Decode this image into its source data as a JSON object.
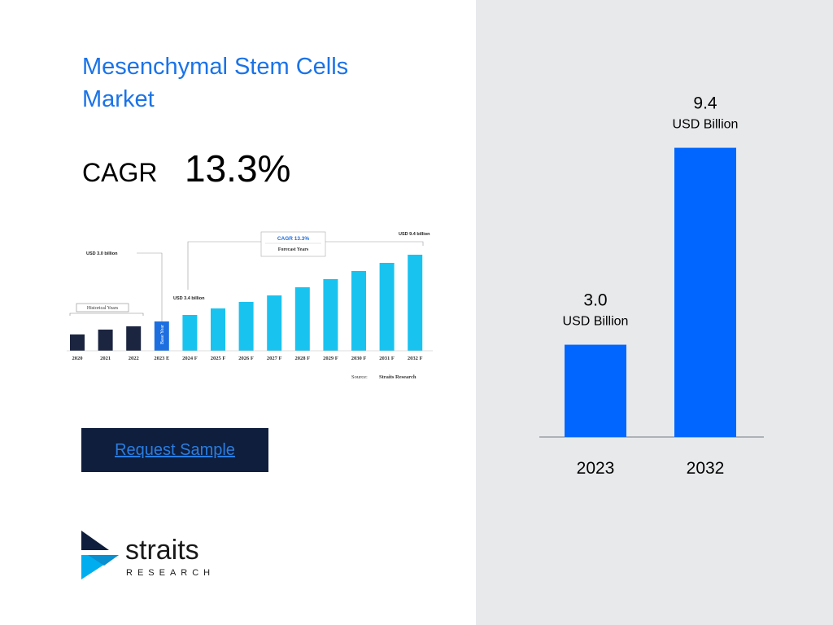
{
  "title": "Mesenchymal Stem Cells Market",
  "cagr": {
    "label": "CAGR",
    "value": "13.3%"
  },
  "request_button": {
    "label": "Request Sample"
  },
  "logo": {
    "word": "straits",
    "sub": "RESEARCH"
  },
  "colors": {
    "bar": "#0066ff",
    "title": "#1a73e8",
    "panel": "#e8e9eb",
    "button": "#0f1e3c"
  },
  "thumbnail": {
    "cagr_box": "CAGR 13.3%",
    "forecast_label": "Forecast Years",
    "historical_label": "Historical Years",
    "base_year_label": "Base Year",
    "ann_2020": "USD 3.0 billion",
    "ann_2024": "USD 3.4 billion",
    "ann_2032": "USD 9.4 billion",
    "source_label": "Source:",
    "source_value": "Straits Research",
    "categories": [
      "2020",
      "2021",
      "2022",
      "2023 E",
      "2024 F",
      "2025 F",
      "2026 F",
      "2027 F",
      "2028 F",
      "2029 F",
      "2030 F",
      "2031 F",
      "2032 F"
    ],
    "relative_values": [
      0.2,
      0.26,
      0.3,
      0.36,
      0.44,
      0.52,
      0.6,
      0.68,
      0.78,
      0.88,
      0.98,
      1.08,
      1.18
    ],
    "kinds": [
      "hist",
      "hist",
      "hist",
      "base",
      "fc",
      "fc",
      "fc",
      "fc",
      "fc",
      "fc",
      "fc",
      "fc",
      "fc"
    ]
  },
  "chart_data": {
    "type": "bar",
    "categories": [
      "2023",
      "2032"
    ],
    "values": [
      3.0,
      9.4
    ],
    "value_labels": [
      "3.0",
      "9.4"
    ],
    "unit_label": "USD Billion",
    "ylim": [
      0,
      10.5
    ]
  }
}
